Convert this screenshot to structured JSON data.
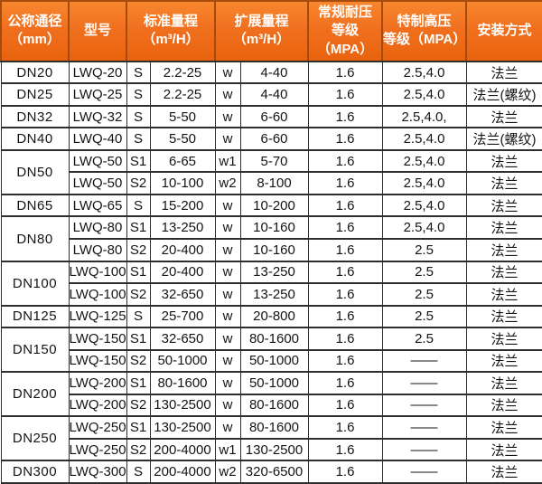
{
  "colors": {
    "header_orange_top": "#f8872f",
    "header_orange_bottom": "#e9630e",
    "header_cell_border": "#a64b0e",
    "grid_border": "#2e2e2e",
    "header_text": "#ffffff",
    "body_text": "#141414"
  },
  "table": {
    "headers": [
      "公称通径\n（mm）",
      "型号",
      "标准量程\n（m³/H）",
      "扩展量程\n（m³/H）",
      "常规耐压\n等级（MPA）",
      "特制高压\n等级（MPA）",
      "安装方式"
    ],
    "rows": [
      {
        "dn": "DN20",
        "dn_rowspan": 1,
        "model": "LWQ-20",
        "std_label": "S",
        "std_range": "2.2-25",
        "ext_label": "w",
        "ext_range": "4-40",
        "pressure": "1.6",
        "high_pressure": "2.5,4.0",
        "install": "法兰"
      },
      {
        "dn": "DN25",
        "dn_rowspan": 1,
        "model": "LWQ-25",
        "std_label": "S",
        "std_range": "2.2-25",
        "ext_label": "w",
        "ext_range": "4-40",
        "pressure": "1.6",
        "high_pressure": "2.5,4.0",
        "install": "法兰(螺纹)"
      },
      {
        "dn": "DN32",
        "dn_rowspan": 1,
        "model": "LWQ-32",
        "std_label": "S",
        "std_range": "5-50",
        "ext_label": "w",
        "ext_range": "6-60",
        "pressure": "1.6",
        "high_pressure": "2.5,4.0,",
        "install": "法兰"
      },
      {
        "dn": "DN40",
        "dn_rowspan": 1,
        "model": "LWQ-40",
        "std_label": "S",
        "std_range": "5-50",
        "ext_label": "w",
        "ext_range": "6-60",
        "pressure": "1.6",
        "high_pressure": "2.5,4.0",
        "install": "法兰(螺纹)"
      },
      {
        "dn": "DN50",
        "dn_rowspan": 2,
        "model": "LWQ-50",
        "std_label": "S1",
        "std_range": "6-65",
        "ext_label": "w1",
        "ext_range": "5-70",
        "pressure": "1.6",
        "high_pressure": "2.5,4.0",
        "install": "法兰"
      },
      {
        "dn": null,
        "model": "LWQ-50",
        "std_label": "S2",
        "std_range": "10-100",
        "ext_label": "w2",
        "ext_range": "8-100",
        "pressure": "1.6",
        "high_pressure": "2.5,4.0",
        "install": "法兰"
      },
      {
        "dn": "DN65",
        "dn_rowspan": 1,
        "model": "LWQ-65",
        "std_label": "S",
        "std_range": "15-200",
        "ext_label": "w",
        "ext_range": "10-200",
        "pressure": "1.6",
        "high_pressure": "2.5,4.0",
        "install": "法兰"
      },
      {
        "dn": "DN80",
        "dn_rowspan": 2,
        "model": "LWQ-80",
        "std_label": "S1",
        "std_range": "13-250",
        "ext_label": "w",
        "ext_range": "10-160",
        "pressure": "1.6",
        "high_pressure": "2.5,4.0",
        "install": "法兰"
      },
      {
        "dn": null,
        "model": "LWQ-80",
        "std_label": "S2",
        "std_range": "20-400",
        "ext_label": "w",
        "ext_range": "10-160",
        "pressure": "1.6",
        "high_pressure": "2.5",
        "install": "法兰"
      },
      {
        "dn": "DN100",
        "dn_rowspan": 2,
        "model": "LWQ-100",
        "std_label": "S1",
        "std_range": "20-400",
        "ext_label": "w",
        "ext_range": "13-250",
        "pressure": "1.6",
        "high_pressure": "2.5",
        "install": "法兰"
      },
      {
        "dn": null,
        "model": "LWQ-100",
        "std_label": "S2",
        "std_range": "32-650",
        "ext_label": "w",
        "ext_range": "13-250",
        "pressure": "1.6",
        "high_pressure": "2.5",
        "install": "法兰"
      },
      {
        "dn": "DN125",
        "dn_rowspan": 1,
        "model": "LWQ-125",
        "std_label": "S",
        "std_range": "25-700",
        "ext_label": "w",
        "ext_range": "20-800",
        "pressure": "1.6",
        "high_pressure": "2.5",
        "install": "法兰"
      },
      {
        "dn": "DN150",
        "dn_rowspan": 2,
        "model": "LWQ-150",
        "std_label": "S1",
        "std_range": "32-650",
        "ext_label": "w",
        "ext_range": "80-1600",
        "pressure": "1.6",
        "high_pressure": "2.5",
        "install": "法兰"
      },
      {
        "dn": null,
        "model": "LWQ-150",
        "std_label": "S2",
        "std_range": "50-1000",
        "ext_label": "w",
        "ext_range": "50-1000",
        "pressure": "1.6",
        "high_pressure": "——",
        "install": "法兰"
      },
      {
        "dn": "DN200",
        "dn_rowspan": 2,
        "model": "LWQ-200",
        "std_label": "S1",
        "std_range": "80-1600",
        "ext_label": "w",
        "ext_range": "50-1000",
        "pressure": "1.6",
        "high_pressure": "——",
        "install": "法兰"
      },
      {
        "dn": null,
        "model": "LWQ-200",
        "std_label": "S2",
        "std_range": "130-2500",
        "ext_label": "w",
        "ext_range": "80-1600",
        "pressure": "1.6",
        "high_pressure": "——",
        "install": "法兰"
      },
      {
        "dn": "DN250",
        "dn_rowspan": 2,
        "model": "LWQ-250",
        "std_label": "S1",
        "std_range": "130-2500",
        "ext_label": "w",
        "ext_range": "80-1600",
        "pressure": "1.6",
        "high_pressure": "——",
        "install": "法兰"
      },
      {
        "dn": null,
        "model": "LWQ-250",
        "std_label": "S2",
        "std_range": "200-4000",
        "ext_label": "w1",
        "ext_range": "130-2500",
        "pressure": "1.6",
        "high_pressure": "——",
        "install": "法兰"
      },
      {
        "dn": "DN300",
        "dn_rowspan": 1,
        "model": "LWQ-300",
        "std_label": "S",
        "std_range": "200-4000",
        "ext_label": "w2",
        "ext_range": "320-6500",
        "pressure": "1.6",
        "high_pressure": "——",
        "install": "法兰"
      }
    ]
  }
}
